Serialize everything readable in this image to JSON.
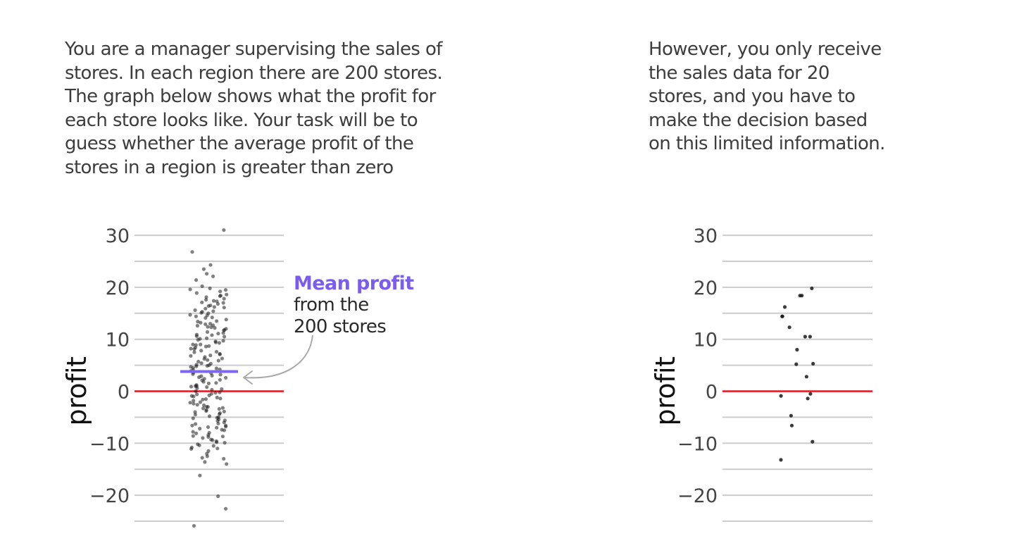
{
  "intro_left": {
    "lines": [
      "You are a manager supervising the sales of",
      "stores. In each region there are 200 stores.",
      "The graph below shows what the profit for",
      "each store looks like. Your task will be to",
      "guess whether the average profit of the",
      "stores in a region is greater than zero"
    ]
  },
  "intro_right": {
    "lines": [
      "However, you only receive",
      "the sales data for 20",
      "stores, and you have to",
      "make the decision based",
      "on this limited information."
    ]
  },
  "annotation": {
    "title": "Mean profit",
    "line1": "from the",
    "line2": "200 stores"
  },
  "colors": {
    "mean_line": "#7b68ee",
    "zero_line": "#e8101a",
    "grid": "#cccccc",
    "points": "#1a1a1a",
    "annotation_title": "#7b5cf0",
    "arrow": "#a8a8a8"
  },
  "chart_data": [
    {
      "type": "scatter",
      "ylabel": "profit",
      "yticks": [
        30,
        20,
        10,
        0,
        -10,
        -20
      ],
      "ytick_labels": [
        "30",
        "20",
        "10",
        "0",
        "−10",
        "−20"
      ],
      "ylim": [
        -26,
        31
      ],
      "grid": true,
      "mean": 3.8,
      "values": [
        31,
        26.8,
        24.3,
        23.5,
        22.6,
        22.1,
        21.4,
        20.2,
        19.8,
        19.5,
        19.2,
        18.9,
        18.6,
        18.3,
        18.1,
        17.8,
        17.6,
        17.4,
        17.1,
        16.8,
        16.5,
        16.2,
        15.9,
        15.6,
        15.3,
        15.0,
        14.7,
        14.4,
        14.1,
        13.8,
        13.5,
        13.2,
        12.9,
        12.6,
        12.3,
        12.0,
        11.7,
        11.4,
        11.1,
        10.8,
        10.5,
        10.2,
        9.9,
        9.6,
        9.3,
        9.0,
        8.7,
        8.4,
        8.1,
        7.8,
        7.5,
        7.2,
        6.9,
        6.6,
        6.3,
        6.0,
        5.7,
        5.4,
        5.1,
        4.8,
        4.5,
        4.2,
        3.9,
        3.6,
        3.3,
        3.0,
        2.7,
        2.4,
        2.1,
        1.8,
        1.5,
        1.2,
        0.9,
        0.6,
        0.3,
        0.0,
        -0.3,
        -0.6,
        -0.9,
        -1.2,
        -1.5,
        -1.8,
        -2.1,
        -2.4,
        -2.7,
        -3.0,
        -3.3,
        -3.6,
        -3.9,
        -4.2,
        -4.5,
        -4.8,
        -5.1,
        -5.4,
        -5.7,
        -6.0,
        -6.3,
        -6.6,
        -6.9,
        -7.2,
        -7.5,
        -7.8,
        -8.1,
        -8.4,
        -8.7,
        -9.0,
        -9.3,
        -9.6,
        -9.9,
        -10.2,
        -10.5,
        -10.8,
        -11.1,
        -11.5,
        -12.0,
        -12.5,
        -13.0,
        -13.6,
        -14.0,
        -16.2,
        -20.2,
        -22.6,
        -25.9,
        19.6,
        17.3,
        15.1,
        13.4,
        11.8,
        10.1,
        8.6,
        7.1,
        5.9,
        4.7,
        3.5,
        2.2,
        1.0,
        -0.2,
        -1.4,
        -2.6,
        -3.8,
        -5.0,
        -6.2,
        -7.4,
        -8.6,
        -9.8,
        18.4,
        16.1,
        14.2,
        12.4,
        9.7,
        6.8,
        4.1,
        1.6,
        -0.8,
        -3.2,
        -5.6,
        -8.0,
        -10.4,
        -12.8,
        17.0,
        13.0,
        9.0,
        5.0,
        1.0,
        -3.0,
        -7.0,
        -11.0,
        16.4,
        12.2,
        8.2,
        4.4,
        0.4,
        -4.4,
        -8.8,
        15.4,
        10.6,
        6.2,
        2.6,
        -1.6,
        -6.6,
        14.6,
        9.4,
        3.2,
        -2.2,
        -5.2,
        11.2,
        7.6,
        0.8,
        -4.0,
        -9.4,
        10.9,
        5.3,
        -1.0,
        -6.8,
        12.7,
        2.9,
        -3.4,
        8.9,
        4.9,
        -0.5
      ]
    },
    {
      "type": "scatter",
      "ylabel": "profit",
      "yticks": [
        30,
        20,
        10,
        0,
        -10,
        -20
      ],
      "ytick_labels": [
        "30",
        "20",
        "10",
        "0",
        "−10",
        "−20"
      ],
      "ylim": [
        -26,
        31
      ],
      "grid": true,
      "values": [
        19.8,
        18.4,
        18.4,
        16.2,
        14.4,
        14.4,
        12.3,
        10.5,
        10.5,
        8.0,
        5.3,
        5.2,
        2.8,
        -0.5,
        -0.9,
        -1.4,
        -4.7,
        -6.6,
        -9.7,
        -13.2
      ]
    }
  ]
}
